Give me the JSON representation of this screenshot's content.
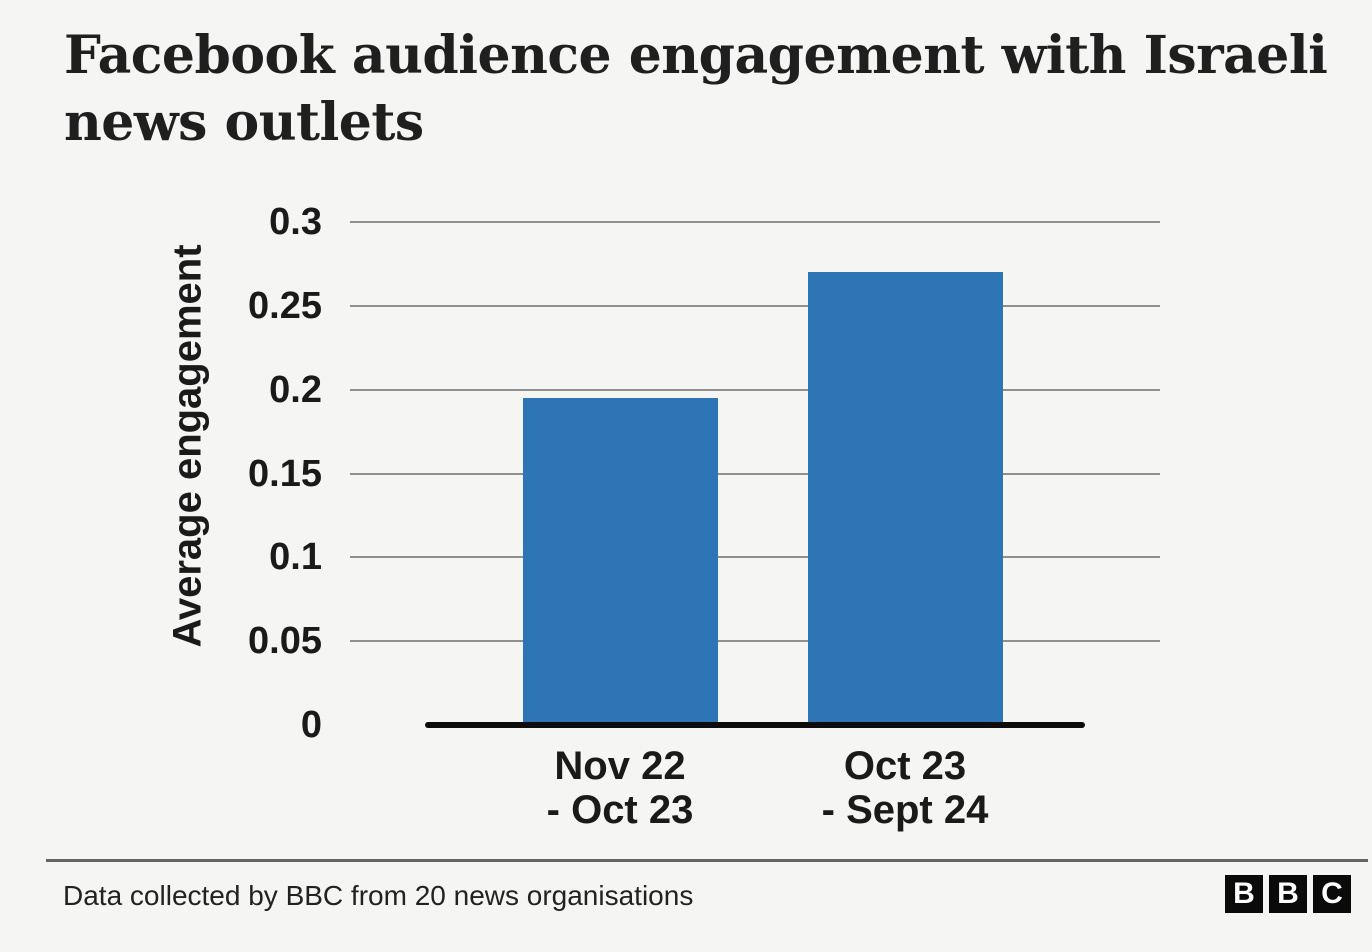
{
  "header": {
    "title": "Facebook audience engagement with Israeli news outlets",
    "title_lines": [
      "Facebook audience engagement with Israeli",
      "news outlets"
    ]
  },
  "chart_data": {
    "type": "bar",
    "title": "Facebook audience engagement with Israeli news outlets",
    "categories": [
      "Nov 22 - Oct 23",
      "Oct 23 - Sept 24"
    ],
    "category_labels": [
      [
        "Nov 22",
        "- Oct 23"
      ],
      [
        "Oct 23",
        "- Sept 24"
      ]
    ],
    "values": [
      0.195,
      0.27
    ],
    "xlabel": "",
    "ylabel": "Average engagement",
    "ylim": [
      0,
      0.3
    ],
    "yticks": [
      0,
      0.05,
      0.1,
      0.15,
      0.2,
      0.25,
      0.3
    ],
    "ytick_labels": [
      "0",
      "0.05",
      "0.1",
      "0.15",
      "0.2",
      "0.25",
      "0.3"
    ],
    "grid": "horizontal",
    "legend": "none",
    "bar_color": "#2e75b6"
  },
  "footer": {
    "source_note": "Data collected by BBC from 20 news organisations",
    "logo_letters": [
      "B",
      "B",
      "C"
    ]
  },
  "colors": {
    "bar": "#2e75b6",
    "background": "#f5f5f4",
    "gridline": "#8f8f8f",
    "axis": "#0c0c0c",
    "text": "#1a1a1a",
    "divider": "#646464",
    "logo_bg": "#0a0a0a",
    "logo_text": "#ffffff"
  }
}
